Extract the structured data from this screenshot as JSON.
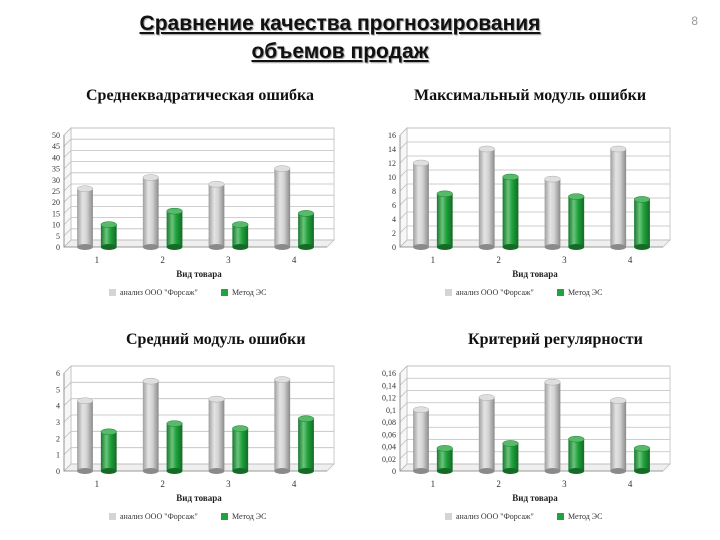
{
  "slide": {
    "title_line1": "Сравнение качества прогнозирования",
    "title_line2": "объемов продаж",
    "page_number": "8"
  },
  "colors": {
    "series1": "#d4d4d4",
    "series2": "#1fa33a",
    "grid": "#bfbfbf"
  },
  "chart_data": [
    {
      "type": "bar",
      "title": "Среднеквадратическая ошибка",
      "xlabel": "Вид товара",
      "ylabel": "",
      "categories": [
        "1",
        "2",
        "3",
        "4"
      ],
      "ylim": [
        0,
        50
      ],
      "yticks": [
        "0",
        "5",
        "10",
        "15",
        "20",
        "25",
        "30",
        "35",
        "40",
        "45",
        "50"
      ],
      "grid": true,
      "legend": "bottom",
      "series": [
        {
          "name": "анализ ООО \"Форсаж\"",
          "values": [
            26,
            31,
            28,
            35
          ]
        },
        {
          "name": "Метод ЭС",
          "values": [
            10,
            16,
            10,
            15
          ]
        }
      ]
    },
    {
      "type": "bar",
      "title": "Максимальный модуль ошибки",
      "xlabel": "Вид товара",
      "ylabel": "",
      "categories": [
        "1",
        "2",
        "3",
        "4"
      ],
      "ylim": [
        0,
        16
      ],
      "yticks": [
        "0",
        "2",
        "4",
        "6",
        "8",
        "10",
        "12",
        "14",
        "16"
      ],
      "grid": true,
      "legend": "bottom",
      "series": [
        {
          "name": "анализ ООО \"Форсаж\"",
          "values": [
            12,
            14,
            9.7,
            14
          ]
        },
        {
          "name": "Метод ЭС",
          "values": [
            7.6,
            10,
            7.2,
            6.8
          ]
        }
      ]
    },
    {
      "type": "bar",
      "title": "Средний модуль ошибки",
      "xlabel": "Вид товара",
      "ylabel": "",
      "categories": [
        "1",
        "2",
        "3",
        "4"
      ],
      "ylim": [
        0,
        6
      ],
      "yticks": [
        "0",
        "1",
        "2",
        "3",
        "4",
        "5",
        "6"
      ],
      "grid": true,
      "legend": "bottom",
      "series": [
        {
          "name": "анализ ООО \"Форсаж\"",
          "values": [
            4.3,
            5.5,
            4.4,
            5.6
          ]
        },
        {
          "name": "Метод ЭС",
          "values": [
            2.4,
            2.9,
            2.6,
            3.2
          ]
        }
      ]
    },
    {
      "type": "bar",
      "title": "Критерий регулярности",
      "xlabel": "Вид товара",
      "ylabel": "",
      "categories": [
        "1",
        "2",
        "3",
        "4"
      ],
      "ylim": [
        0,
        0.16
      ],
      "yticks": [
        "0",
        "0,02",
        "0,04",
        "0,06",
        "0,08",
        "0,1",
        "0,12",
        "0,14",
        "0,16"
      ],
      "grid": true,
      "legend": "bottom",
      "series": [
        {
          "name": "анализ ООО \"Форсаж\"",
          "values": [
            0.1,
            0.12,
            0.145,
            0.115
          ]
        },
        {
          "name": "Метод ЭС",
          "values": [
            0.037,
            0.045,
            0.052,
            0.037
          ]
        }
      ]
    }
  ]
}
